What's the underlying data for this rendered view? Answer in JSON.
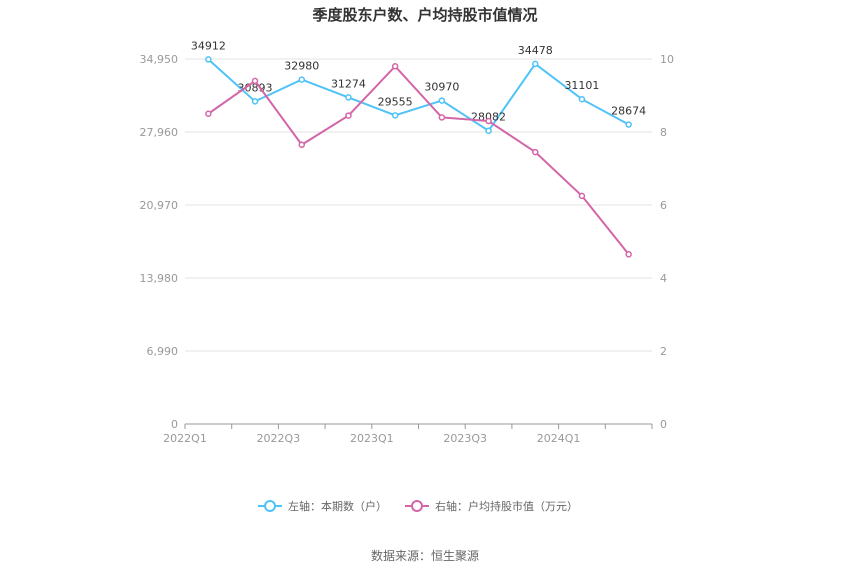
{
  "chart_data": {
    "type": "line",
    "title": "季度股东户数、户均持股市值情况",
    "x": [
      "2022Q1",
      "2022Q2",
      "2022Q3",
      "2022Q4",
      "2023Q1",
      "2023Q2",
      "2023Q3",
      "2023Q4",
      "2024Q1",
      "2024Q2"
    ],
    "x_tick_labels": [
      "2022Q1",
      "2022Q3",
      "2023Q1",
      "2023Q3",
      "2024Q1"
    ],
    "left_axis": {
      "ylim": [
        0,
        34950
      ],
      "ticks": [
        "0",
        "6,990",
        "13,980",
        "20,970",
        "27,960",
        "34,950"
      ]
    },
    "right_axis": {
      "ylim": [
        0,
        10
      ],
      "ticks": [
        "0",
        "2",
        "4",
        "6",
        "8",
        "10"
      ]
    },
    "series": [
      {
        "name": "左轴：本期数（户）",
        "axis": "left",
        "color": "#4fc3f7",
        "values": [
          34912,
          30893,
          32980,
          31274,
          29555,
          30970,
          28082,
          34478,
          31101,
          28674
        ],
        "labels": [
          "34912",
          "30893",
          "32980",
          "31274",
          "29555",
          "30970",
          "28082",
          "34478",
          "31101",
          "28674"
        ]
      },
      {
        "name": "右轴：户均持股市值（万元）",
        "axis": "right",
        "color": "#d465a8",
        "values": [
          8.5,
          9.4,
          7.65,
          8.45,
          9.8,
          8.4,
          8.3,
          7.45,
          6.25,
          4.65
        ]
      }
    ],
    "grid": true,
    "legend_position": "bottom"
  },
  "source": "数据来源：恒生聚源"
}
